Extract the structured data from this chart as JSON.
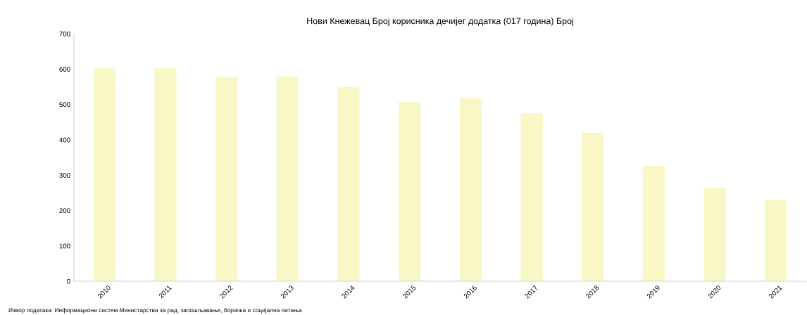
{
  "chart_data": {
    "type": "bar",
    "title": "Нови Кнежевац Број корисника дечијег додатка (017 година) Број",
    "categories": [
      "2010",
      "2011",
      "2012",
      "2013",
      "2014",
      "2015",
      "2016",
      "2017",
      "2018",
      "2019",
      "2020",
      "2021"
    ],
    "values": [
      602,
      602,
      578,
      579,
      550,
      507,
      517,
      475,
      420,
      326,
      264,
      229
    ],
    "color": "#f9f7c5",
    "ylim": [
      0,
      700
    ],
    "yticks": [
      0,
      100,
      200,
      300,
      400,
      500,
      600,
      700
    ],
    "grid": false,
    "annotations": [
      "Извор података: Информациони систем Министарства за рад, запошљавање, борачка и социјална питања"
    ]
  }
}
